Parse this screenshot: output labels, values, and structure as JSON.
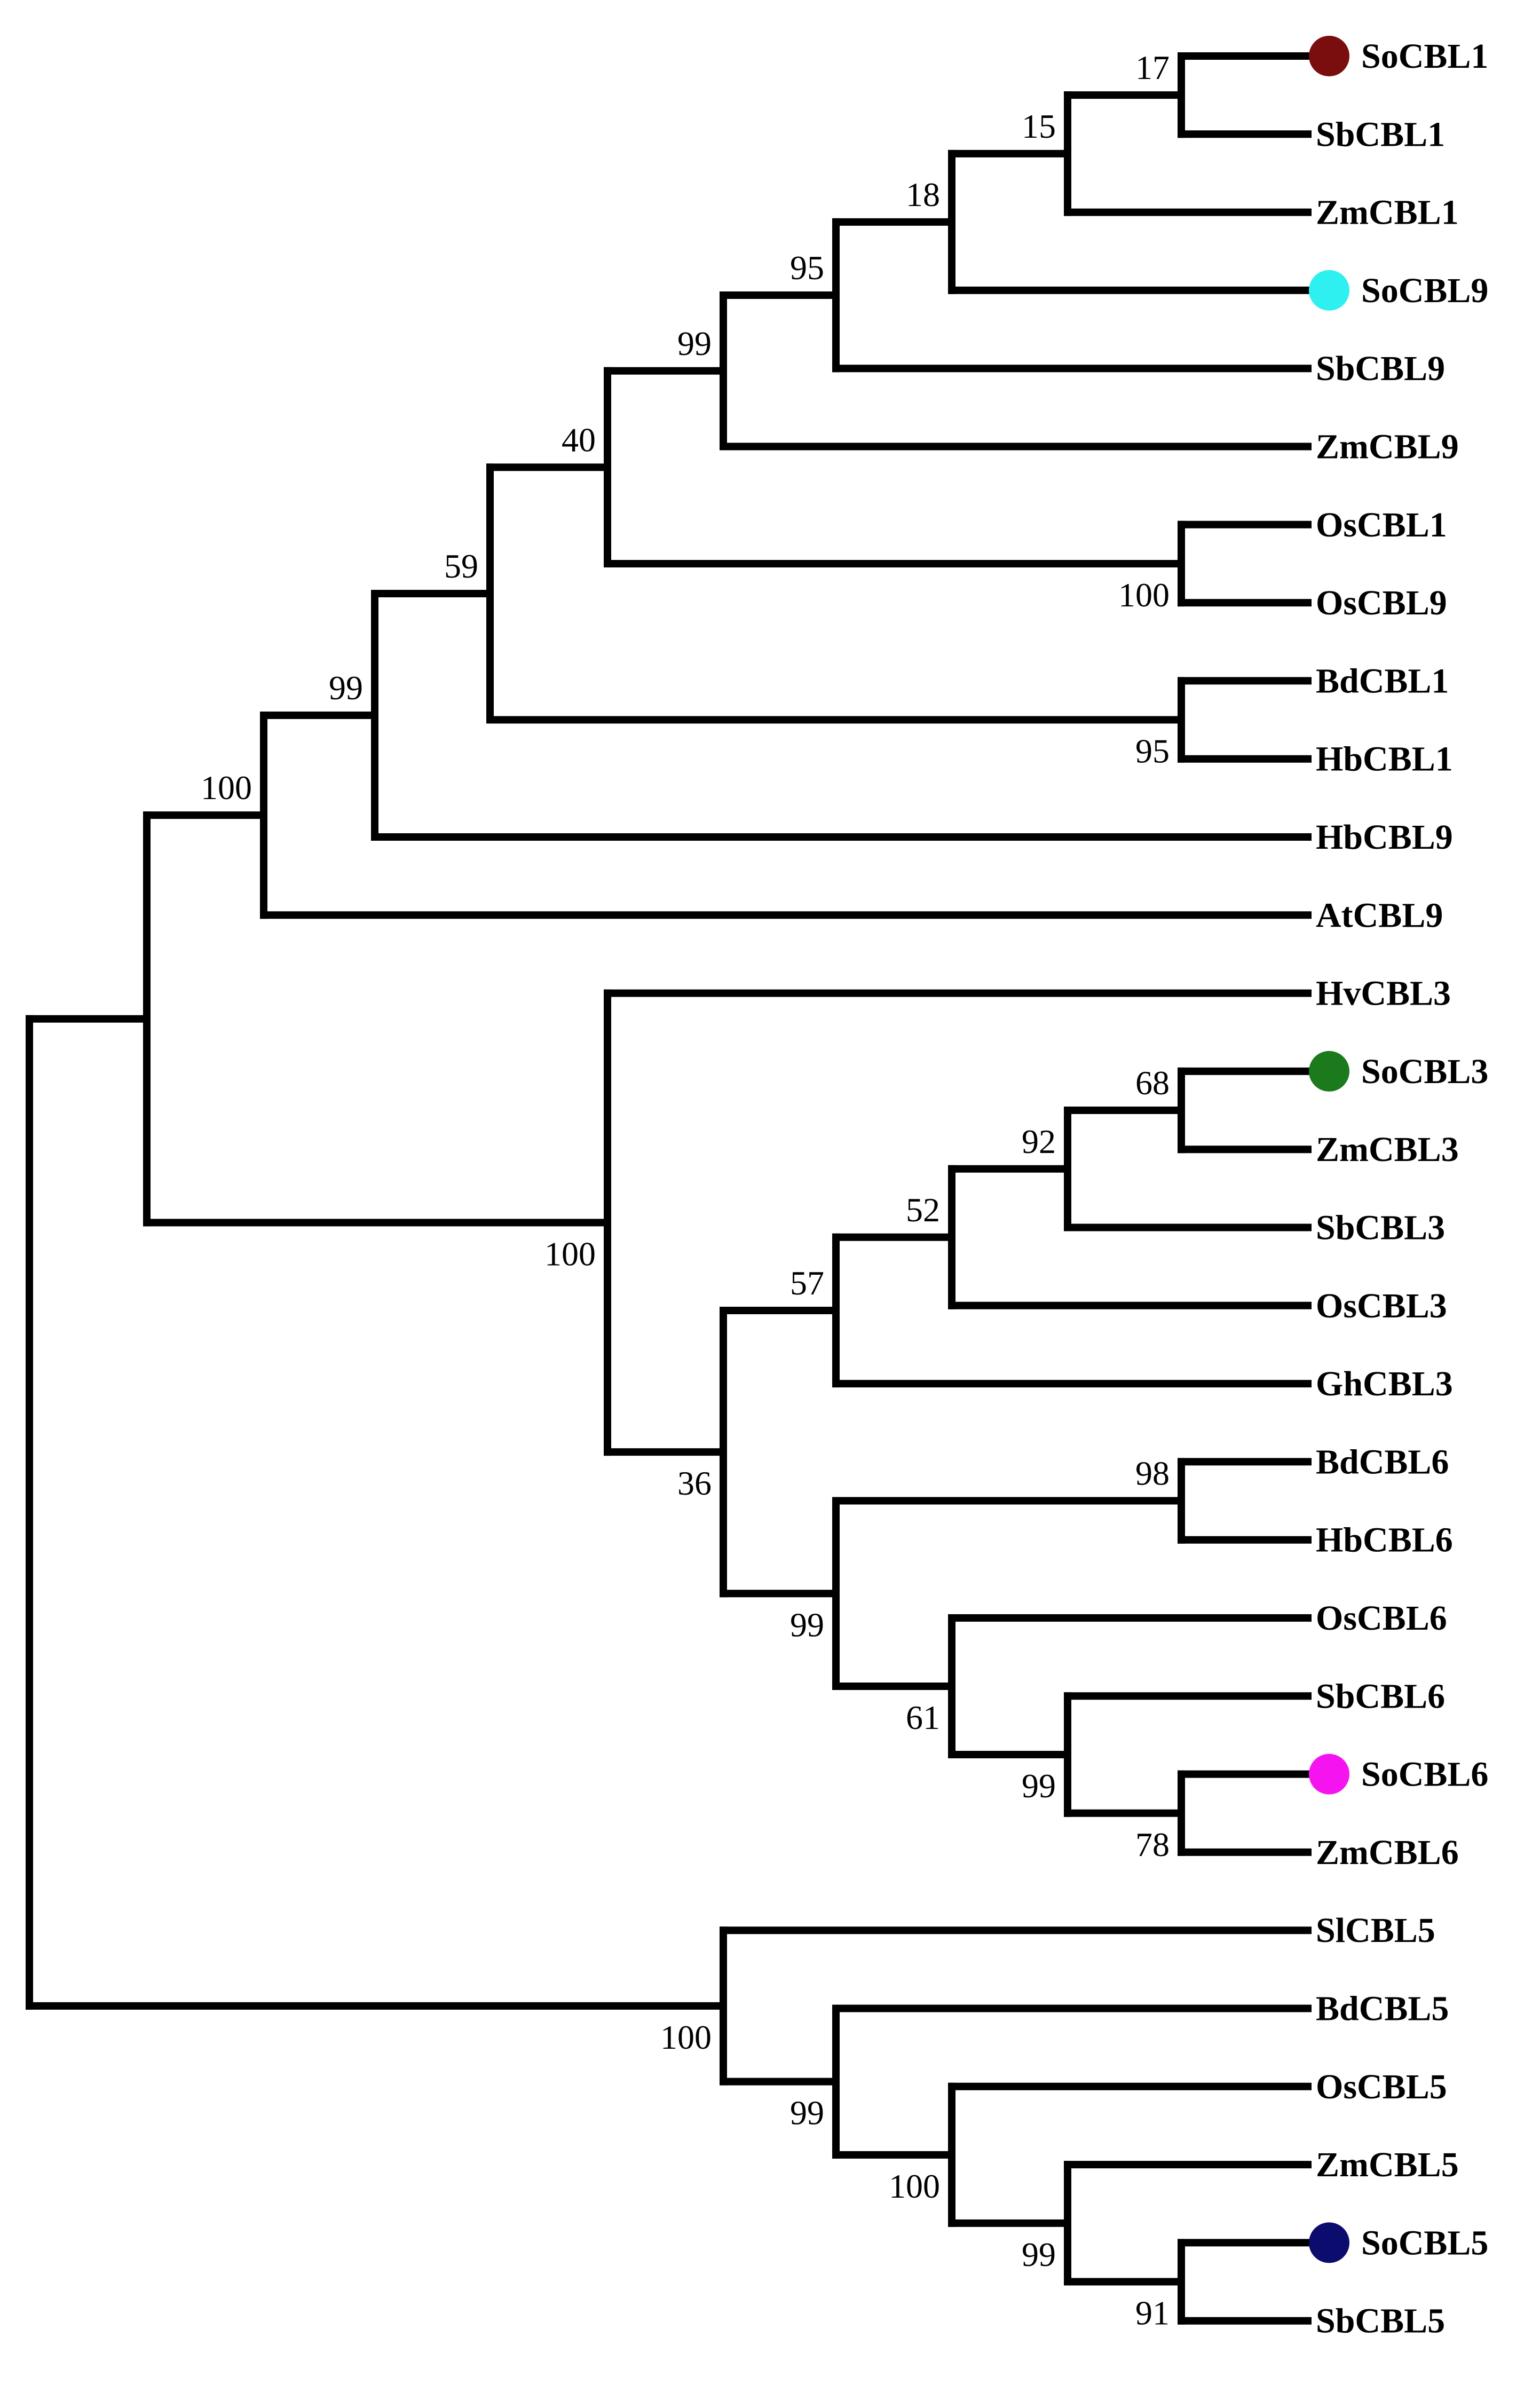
{
  "figure": {
    "type": "phylogenetic-tree",
    "leaves": [
      {
        "id": "SoCBL1",
        "label": "SoCBL1",
        "marker": "#7a0e0e"
      },
      {
        "id": "SbCBL1",
        "label": "SbCBL1"
      },
      {
        "id": "ZmCBL1",
        "label": "ZmCBL1"
      },
      {
        "id": "SoCBL9",
        "label": "SoCBL9",
        "marker": "#2ff0f0"
      },
      {
        "id": "SbCBL9",
        "label": "SbCBL9"
      },
      {
        "id": "ZmCBL9",
        "label": "ZmCBL9"
      },
      {
        "id": "OsCBL1",
        "label": "OsCBL1"
      },
      {
        "id": "OsCBL9",
        "label": "OsCBL9"
      },
      {
        "id": "BdCBL1",
        "label": "BdCBL1"
      },
      {
        "id": "HbCBL1",
        "label": "HbCBL1"
      },
      {
        "id": "HbCBL9",
        "label": "HbCBL9"
      },
      {
        "id": "AtCBL9",
        "label": "AtCBL9"
      },
      {
        "id": "HvCBL3",
        "label": "HvCBL3"
      },
      {
        "id": "SoCBL3",
        "label": "SoCBL3",
        "marker": "#1b7a1b"
      },
      {
        "id": "ZmCBL3",
        "label": "ZmCBL3"
      },
      {
        "id": "SbCBL3",
        "label": "SbCBL3"
      },
      {
        "id": "OsCBL3",
        "label": "OsCBL3"
      },
      {
        "id": "GhCBL3",
        "label": "GhCBL3"
      },
      {
        "id": "BdCBL6",
        "label": "BdCBL6"
      },
      {
        "id": "HbCBL6",
        "label": "HbCBL6"
      },
      {
        "id": "OsCBL6",
        "label": "OsCBL6"
      },
      {
        "id": "SbCBL6",
        "label": "SbCBL6"
      },
      {
        "id": "SoCBL6",
        "label": "SoCBL6",
        "marker": "#f514f0"
      },
      {
        "id": "ZmCBL6",
        "label": "ZmCBL6"
      },
      {
        "id": "SlCBL5",
        "label": "SlCBL5"
      },
      {
        "id": "BdCBL5",
        "label": "BdCBL5"
      },
      {
        "id": "OsCBL5",
        "label": "OsCBL5"
      },
      {
        "id": "ZmCBL5",
        "label": "ZmCBL5"
      },
      {
        "id": "SoCBL5",
        "label": "SoCBL5",
        "marker": "#0c0c6e"
      },
      {
        "id": "SbCBL5",
        "label": "SbCBL5"
      }
    ],
    "nodes": [
      {
        "id": "n_so1_sb1",
        "children": [
          "SoCBL1",
          "SbCBL1"
        ],
        "support": "17"
      },
      {
        "id": "n_15",
        "children": [
          "n_so1_sb1",
          "ZmCBL1"
        ],
        "support": "15"
      },
      {
        "id": "n_18",
        "children": [
          "n_15",
          "SoCBL9"
        ],
        "support": "18"
      },
      {
        "id": "n_95a",
        "children": [
          "n_18",
          "SbCBL9"
        ],
        "support": "95"
      },
      {
        "id": "n_99a",
        "children": [
          "n_95a",
          "ZmCBL9"
        ],
        "support": "99"
      },
      {
        "id": "n_os19",
        "children": [
          "OsCBL1",
          "OsCBL9"
        ],
        "support": "100"
      },
      {
        "id": "n_40",
        "children": [
          "n_99a",
          "n_os19"
        ],
        "support": "40"
      },
      {
        "id": "n_bdhb1",
        "children": [
          "BdCBL1",
          "HbCBL1"
        ],
        "support": "95"
      },
      {
        "id": "n_59",
        "children": [
          "n_40",
          "n_bdhb1"
        ],
        "support": "59"
      },
      {
        "id": "n_99b",
        "children": [
          "n_59",
          "HbCBL9"
        ],
        "support": "99"
      },
      {
        "id": "n_100a",
        "children": [
          "n_99b",
          "AtCBL9"
        ],
        "support": "100"
      },
      {
        "id": "n_68",
        "children": [
          "SoCBL3",
          "ZmCBL3"
        ],
        "support": "68"
      },
      {
        "id": "n_92",
        "children": [
          "n_68",
          "SbCBL3"
        ],
        "support": "92"
      },
      {
        "id": "n_52",
        "children": [
          "n_92",
          "OsCBL3"
        ],
        "support": "52"
      },
      {
        "id": "n_57",
        "children": [
          "n_52",
          "GhCBL3"
        ],
        "support": "57"
      },
      {
        "id": "n_98",
        "children": [
          "BdCBL6",
          "HbCBL6"
        ],
        "support": "98"
      },
      {
        "id": "n_78",
        "children": [
          "SoCBL6",
          "ZmCBL6"
        ],
        "support": "78"
      },
      {
        "id": "n_99c",
        "children": [
          "SbCBL6",
          "n_78"
        ],
        "support": "99"
      },
      {
        "id": "n_61",
        "children": [
          "OsCBL6",
          "n_99c"
        ],
        "support": "61"
      },
      {
        "id": "n_99d",
        "children": [
          "n_98",
          "n_61"
        ],
        "support": "99"
      },
      {
        "id": "n_36",
        "children": [
          "n_57",
          "n_99d"
        ],
        "support": "36"
      },
      {
        "id": "n_100b",
        "children": [
          "HvCBL3",
          "n_36"
        ],
        "support": "100"
      },
      {
        "id": "n_mid",
        "children": [
          "n_100a",
          "n_100b"
        ],
        "support": ""
      },
      {
        "id": "n_91",
        "children": [
          "SoCBL5",
          "SbCBL5"
        ],
        "support": "91"
      },
      {
        "id": "n_99e",
        "children": [
          "ZmCBL5",
          "n_91"
        ],
        "support": "99"
      },
      {
        "id": "n_100c",
        "children": [
          "OsCBL5",
          "n_99e"
        ],
        "support": "100"
      },
      {
        "id": "n_99f",
        "children": [
          "BdCBL5",
          "n_100c"
        ],
        "support": "99"
      },
      {
        "id": "n_100d",
        "children": [
          "SlCBL5",
          "n_99f"
        ],
        "support": "100"
      },
      {
        "id": "root",
        "children": [
          "n_mid",
          "n_100d"
        ],
        "support": ""
      }
    ]
  }
}
